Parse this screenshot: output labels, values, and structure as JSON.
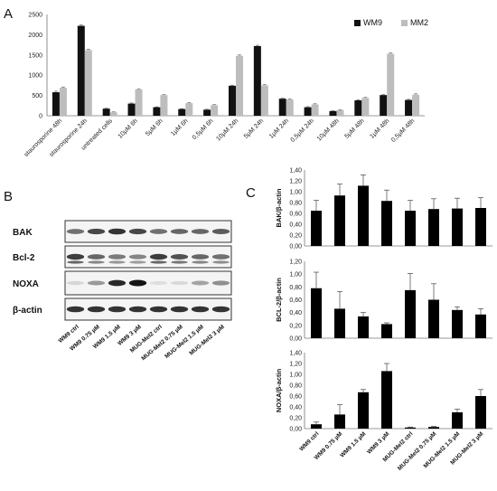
{
  "panels": {
    "a_letter": "A",
    "b_letter": "B",
    "c_letter": "C"
  },
  "chart_data": [
    {
      "type": "bar",
      "panel": "A",
      "categories": [
        "staurosporine 48h",
        "staurosporine 24h",
        "untreated cells",
        "10µM 6h",
        "5µM 6h",
        "1µM 6h",
        "0,5µM 6h",
        "10µM 24h",
        "5µM 24h",
        "1µM 24h",
        "0,5µM 24h",
        "10µM 48h",
        "5µM 48h",
        "1µM 48h",
        "0,5µM 48h"
      ],
      "series": [
        {
          "name": "WM9",
          "color": "#111111",
          "values": [
            580,
            2220,
            175,
            300,
            210,
            165,
            150,
            740,
            1720,
            420,
            210,
            115,
            380,
            510,
            390
          ],
          "errors": [
            25,
            20,
            10,
            15,
            10,
            10,
            10,
            15,
            20,
            15,
            15,
            10,
            15,
            15,
            15
          ]
        },
        {
          "name": "MM2",
          "color": "#bdbdbd",
          "values": [
            690,
            1620,
            85,
            650,
            510,
            310,
            260,
            1480,
            750,
            400,
            280,
            140,
            440,
            1530,
            520
          ],
          "errors": [
            20,
            20,
            10,
            15,
            15,
            15,
            15,
            20,
            20,
            15,
            15,
            10,
            15,
            20,
            20
          ]
        }
      ],
      "yticks": [
        "0",
        "500",
        "1000",
        "1500",
        "2000",
        "2500"
      ],
      "ylim": [
        0,
        2500
      ],
      "legend_position": "top-right"
    },
    {
      "type": "bar",
      "panel": "C-top",
      "ylabel": "BAK/β-actin",
      "categories": [
        "WM9 ctrl",
        "WM9 0.75 µM",
        "WM9 1.5 µM",
        "WM9 3 µM",
        "MUG-Mel2 ctrl",
        "MUG-Mel2 0.75 µM",
        "MUG-Mel2 1.5 µM",
        "MUG-Mel2 3 µM"
      ],
      "values": [
        0.65,
        0.93,
        1.11,
        0.83,
        0.65,
        0.68,
        0.69,
        0.7
      ],
      "errors": [
        0.19,
        0.21,
        0.2,
        0.2,
        0.19,
        0.19,
        0.19,
        0.19
      ],
      "yticks": [
        "0,00",
        "0,20",
        "0,40",
        "0,60",
        "0,80",
        "1,00",
        "1,20",
        "1,40"
      ],
      "ylim": [
        0,
        1.4
      ]
    },
    {
      "type": "bar",
      "panel": "C-middle",
      "ylabel": "BCL-2/β-actin",
      "categories": [
        "WM9 ctrl",
        "WM9 0.75 µM",
        "WM9 1.5 µM",
        "WM9 3 µM",
        "MUG-Mel2 ctrl",
        "MUG-Mel2 0.75 µM",
        "MUG-Mel2 1.5 µM",
        "MUG-Mel2 3 µM"
      ],
      "values": [
        0.78,
        0.46,
        0.34,
        0.22,
        0.75,
        0.6,
        0.44,
        0.37
      ],
      "errors": [
        0.25,
        0.27,
        0.06,
        0.02,
        0.26,
        0.25,
        0.05,
        0.09
      ],
      "yticks": [
        "0,00",
        "0,20",
        "0,40",
        "0,60",
        "0,80",
        "1,00",
        "1,20"
      ],
      "ylim": [
        0,
        1.2
      ]
    },
    {
      "type": "bar",
      "panel": "C-bottom",
      "ylabel": "NOXA/β-actin",
      "categories": [
        "WM9 ctrl",
        "WM9 0.75 µM",
        "WM9 1.5 µM",
        "WM9 3 µM",
        "MUG-Mel2 ctrl",
        "MUG-Mel2 0.75 µM",
        "MUG-Mel2 1.5 µM",
        "MUG-Mel2 3 µM"
      ],
      "values": [
        0.08,
        0.26,
        0.67,
        1.06,
        0.02,
        0.03,
        0.3,
        0.6
      ],
      "errors": [
        0.04,
        0.18,
        0.05,
        0.14,
        0.01,
        0.01,
        0.06,
        0.12
      ],
      "yticks": [
        "0,00",
        "0,20",
        "0,40",
        "0,60",
        "0,80",
        "1,00",
        "1,20",
        "1,40"
      ],
      "ylim": [
        0,
        1.4
      ]
    }
  ],
  "blot": {
    "labels": [
      "BAK",
      "Bcl-2",
      "NOXA",
      "β-actin"
    ],
    "lanes": [
      "WM9 ctrl",
      "WM9 0.75 µM",
      "WM9 1.5 µM",
      "WM9 3 µM",
      "MUG-Mel2 ctrl",
      "MUG-Mel2 0.75 µM",
      "MUG-Mel2 1.5 µM",
      "MUG-Mel2 3 µM"
    ],
    "band_intensity": [
      [
        0.55,
        0.75,
        0.85,
        0.75,
        0.55,
        0.6,
        0.6,
        0.65
      ],
      [
        0.8,
        0.6,
        0.5,
        0.45,
        0.8,
        0.7,
        0.6,
        0.55
      ],
      [
        0.05,
        0.35,
        0.9,
        1.0,
        0.02,
        0.04,
        0.3,
        0.4
      ],
      [
        0.85,
        0.85,
        0.85,
        0.85,
        0.85,
        0.85,
        0.85,
        0.85
      ]
    ]
  }
}
